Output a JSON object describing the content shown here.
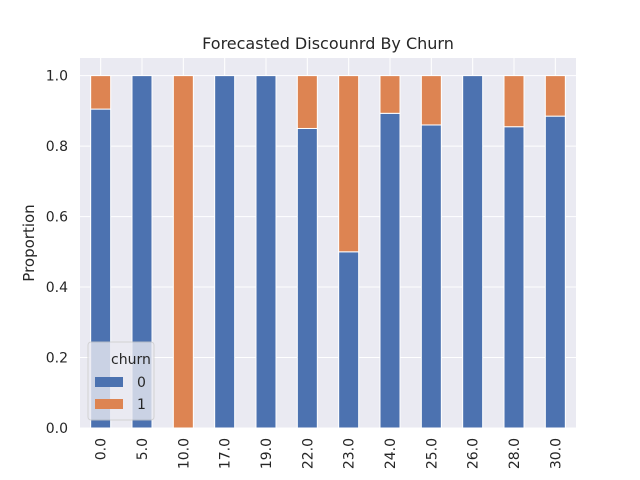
{
  "chart_data": {
    "type": "bar",
    "stacked": true,
    "title": "Forecasted Discounrd By Churn",
    "xlabel": "",
    "ylabel": "Proportion",
    "ylim": [
      0,
      1.05
    ],
    "yticks": [
      "0.0",
      "0.2",
      "0.4",
      "0.6",
      "0.8",
      "1.0"
    ],
    "categories": [
      "0.0",
      "5.0",
      "10.0",
      "17.0",
      "19.0",
      "22.0",
      "23.0",
      "24.0",
      "25.0",
      "26.0",
      "28.0",
      "30.0"
    ],
    "series": [
      {
        "name": "0",
        "color": "#4c72b0",
        "values": [
          0.905,
          1.0,
          0.0,
          1.0,
          1.0,
          0.85,
          0.5,
          0.893,
          0.86,
          1.0,
          0.855,
          0.885
        ]
      },
      {
        "name": "1",
        "color": "#dd8452",
        "values": [
          0.095,
          0.0,
          1.0,
          0.0,
          0.0,
          0.15,
          0.5,
          0.107,
          0.14,
          0.0,
          0.145,
          0.115
        ]
      }
    ],
    "legend": {
      "title": "churn",
      "placement": "lower-left"
    },
    "grid": true,
    "style": {
      "background": "#eaeaf2",
      "gridColor": "#ffffff"
    }
  }
}
